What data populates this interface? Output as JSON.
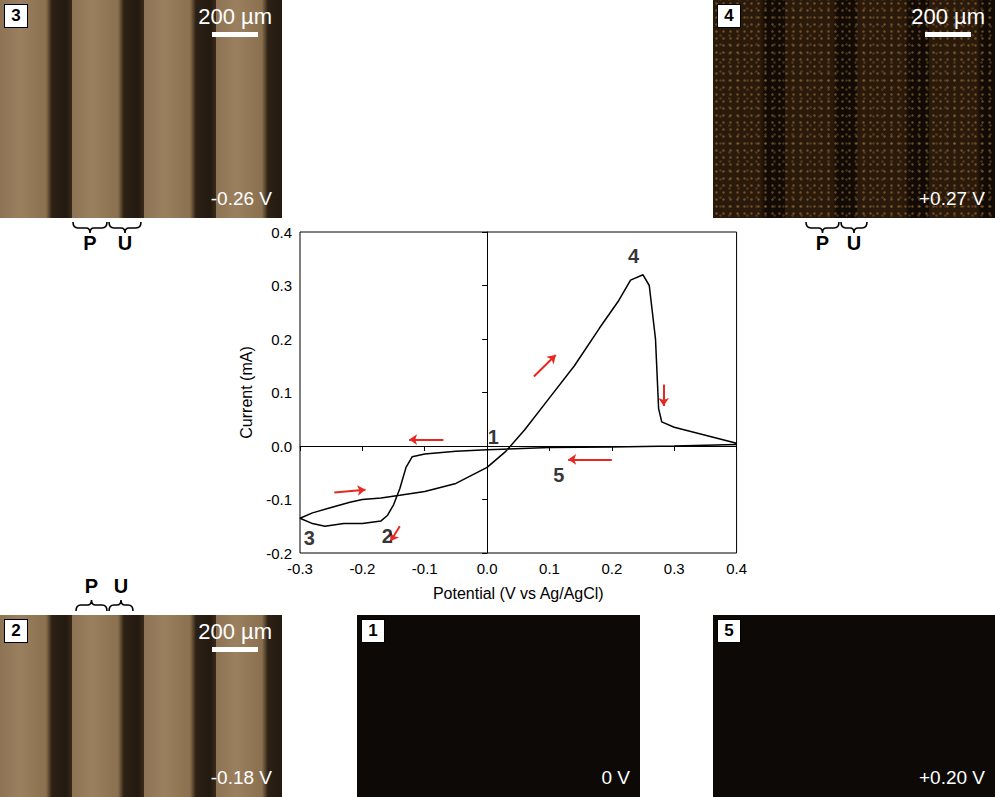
{
  "chart_data": {
    "type": "line",
    "x_label": "Potential (V vs Ag/AgCl)",
    "y_label": "Current (mA)",
    "x": [
      0.4,
      0.3,
      0.2,
      0.1,
      0.0,
      -0.05,
      -0.1,
      -0.12,
      -0.13,
      -0.14,
      -0.15,
      -0.16,
      -0.17,
      -0.2,
      -0.23,
      -0.26,
      -0.28,
      -0.3,
      -0.28,
      -0.25,
      -0.22,
      -0.2,
      -0.17,
      -0.14,
      -0.1,
      -0.05,
      0.0,
      0.03,
      0.06,
      0.1,
      0.14,
      0.18,
      0.21,
      0.23,
      0.25,
      0.26,
      0.27,
      0.275,
      0.28,
      0.3,
      0.35,
      0.4
    ],
    "values": [
      0.003,
      0.0,
      -0.002,
      -0.003,
      -0.007,
      -0.01,
      -0.015,
      -0.02,
      -0.04,
      -0.08,
      -0.11,
      -0.13,
      -0.14,
      -0.145,
      -0.145,
      -0.15,
      -0.145,
      -0.135,
      -0.125,
      -0.115,
      -0.105,
      -0.1,
      -0.097,
      -0.092,
      -0.085,
      -0.07,
      -0.04,
      -0.01,
      0.03,
      0.09,
      0.15,
      0.22,
      0.27,
      0.31,
      0.32,
      0.3,
      0.2,
      0.07,
      0.045,
      0.035,
      0.02,
      0.005
    ],
    "color": "#000000",
    "xlim": [
      -0.3,
      0.4
    ],
    "xticks": [
      -0.3,
      -0.2,
      -0.1,
      {
        "value": 0,
        "label": "0.0"
      },
      0.1,
      0.2,
      0.3,
      0.4
    ],
    "ylim": [
      -0.2,
      0.4
    ],
    "yticks": [
      -0.2,
      -0.1,
      {
        "value": 0,
        "label": "0.0"
      },
      0.1,
      0.2,
      0.3,
      0.4
    ],
    "grid": false,
    "annotations": [
      {
        "text": "1",
        "x": 0.01,
        "y": 0.017
      },
      {
        "text": "2",
        "x": -0.16,
        "y": -0.168
      },
      {
        "text": "3",
        "x": -0.285,
        "y": -0.172
      },
      {
        "text": "4",
        "x": 0.235,
        "y": 0.355
      },
      {
        "text": "5",
        "x": 0.115,
        "y": -0.055
      }
    ],
    "arrows": {
      "color": "#e8281e",
      "items": [
        {
          "from": [
            -0.07,
            0.012
          ],
          "to": [
            -0.125,
            0.012
          ]
        },
        {
          "from": [
            0.2,
            -0.025
          ],
          "to": [
            0.13,
            -0.025
          ]
        },
        {
          "from": [
            0.075,
            0.13
          ],
          "to": [
            0.11,
            0.17
          ]
        },
        {
          "from": [
            0.283,
            0.115
          ],
          "to": [
            0.283,
            0.075
          ]
        },
        {
          "from": [
            -0.14,
            -0.15
          ],
          "to": [
            -0.155,
            -0.178
          ]
        },
        {
          "from": [
            -0.245,
            -0.087
          ],
          "to": [
            -0.195,
            -0.082
          ]
        }
      ]
    }
  },
  "panels": [
    {
      "label": "3",
      "scale_bar": "200 µm",
      "potential": "-0.26 V",
      "regions": [
        "P",
        "U"
      ]
    },
    {
      "label": "4",
      "scale_bar": "200 µm",
      "potential": "+0.27 V",
      "regions": [
        "P",
        "U"
      ]
    },
    {
      "label": "2",
      "scale_bar": "200 µm",
      "potential": "-0.18 V",
      "regions": [
        "P",
        "U"
      ]
    },
    {
      "label": "1",
      "potential": "0 V"
    },
    {
      "label": "5",
      "potential": "+0.20 V"
    }
  ]
}
